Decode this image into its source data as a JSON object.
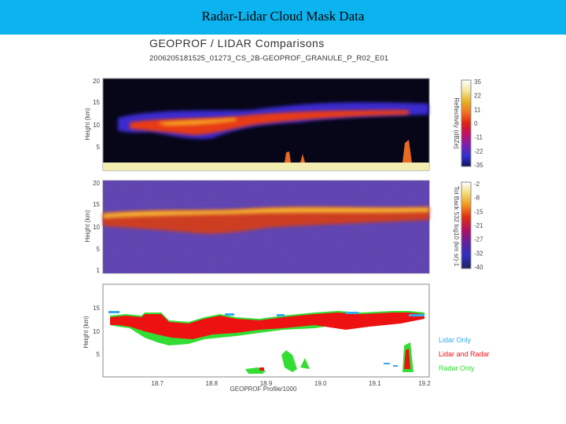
{
  "slide": {
    "title": "Radar-Lidar Cloud Mask Data"
  },
  "figure": {
    "title": "GEOPROF / LIDAR Comparisons",
    "subtitle": "2006205181525_01273_CS_2B-GEOPROF_GRANULE_P_R02_E01"
  },
  "colors": {
    "title_bar": "#0bb4ee",
    "lidar_only": "#33aaee",
    "lidar_and_radar": "#ee1111",
    "radar_only": "#33dd33"
  },
  "chart_data": [
    {
      "type": "heatmap",
      "panel": "radar",
      "ylabel": "Height (km)",
      "yticks": [
        5,
        10,
        15,
        20
      ],
      "ylim": [
        0,
        20
      ],
      "xlim": [
        18.6,
        19.2
      ],
      "colorbar": {
        "label": "Reflectivity (dBZe)",
        "ticks": [
          "35",
          "22",
          "11",
          "0",
          "-11",
          "-22",
          "-35"
        ]
      }
    },
    {
      "type": "heatmap",
      "panel": "lidar",
      "ylabel": "Height (km)",
      "yticks": [
        1,
        5,
        10,
        15,
        20
      ],
      "ylim": [
        0,
        20
      ],
      "xlim": [
        18.6,
        19.2
      ],
      "colorbar": {
        "label": "Tot Back 532 log10 (km sr)-1",
        "ticks": [
          "-2",
          "-8",
          "-15",
          "-21",
          "-27",
          "-32",
          "-40"
        ]
      }
    },
    {
      "type": "scatter",
      "panel": "mask",
      "ylabel": "Height (km)",
      "xlabel": "GEOPROF Profile/1000",
      "yticks": [
        5,
        10,
        15
      ],
      "ylim": [
        0,
        20
      ],
      "xlim": [
        18.6,
        19.2
      ],
      "xticks": [
        "18.7",
        "18.8",
        "18.9",
        "19.0",
        "19.1",
        "19.2"
      ],
      "legend_position": "right",
      "series": [
        {
          "name": "Lidar Only"
        },
        {
          "name": "Lidar and Radar"
        },
        {
          "name": "Radar Only"
        }
      ]
    }
  ]
}
